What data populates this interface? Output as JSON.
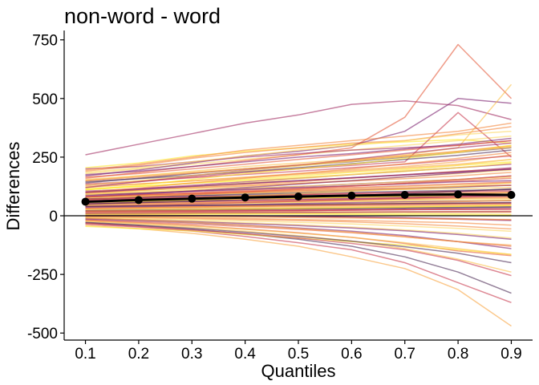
{
  "chart_data": {
    "type": "line",
    "title": "non-word - word",
    "xlabel": "Quantiles",
    "ylabel": "Differences",
    "x": [
      0.1,
      0.2,
      0.3,
      0.4,
      0.5,
      0.6,
      0.7,
      0.8,
      0.9
    ],
    "x_tick_labels": [
      "0.1",
      "0.2",
      "0.3",
      "0.4",
      "0.5",
      "0.6",
      "0.7",
      "0.8",
      "0.9"
    ],
    "y_ticks": [
      750,
      500,
      250,
      0,
      -250,
      -500
    ],
    "y_tick_labels": [
      "750",
      "500",
      "250",
      "0",
      "-250",
      "-500"
    ],
    "xlim": [
      0.06,
      0.94
    ],
    "ylim": [
      -530,
      790
    ],
    "grid": false,
    "zero_line": true,
    "mean_series": {
      "values": [
        60,
        67,
        73,
        78,
        82,
        86,
        89,
        91,
        89
      ],
      "color": "#000000",
      "markers": true
    },
    "individual_series_count": 100,
    "individual_series_colors": [
      "#fde725",
      "#fcd55e",
      "#fbbf4a",
      "#f9a43f",
      "#f3853b",
      "#e45a3a",
      "#c83b4f",
      "#a22d62",
      "#7b1f6e",
      "#4d2b55"
    ],
    "individual_series": [
      {
        "values": [
          205,
          225,
          255,
          275,
          290,
          305,
          315,
          325,
          310
        ]
      },
      {
        "values": [
          260,
          305,
          350,
          395,
          430,
          475,
          490,
          470,
          410
        ]
      },
      {
        "values": [
          190,
          215,
          245,
          270,
          290,
          310,
          320,
          350,
          380
        ]
      },
      {
        "values": [
          180,
          200,
          220,
          240,
          260,
          280,
          300,
          320,
          340
        ]
      },
      {
        "values": [
          170,
          195,
          225,
          255,
          275,
          300,
          360,
          500,
          480
        ]
      },
      {
        "values": [
          160,
          185,
          210,
          235,
          260,
          290,
          420,
          730,
          500
        ]
      },
      {
        "values": [
          150,
          170,
          190,
          210,
          225,
          240,
          260,
          290,
          560
        ]
      },
      {
        "values": [
          140,
          160,
          180,
          200,
          215,
          230,
          250,
          270,
          290
        ]
      },
      {
        "values": [
          130,
          145,
          165,
          185,
          200,
          215,
          230,
          440,
          250
        ]
      },
      {
        "values": [
          120,
          135,
          150,
          165,
          180,
          195,
          210,
          230,
          260
        ]
      },
      {
        "values": [
          110,
          125,
          140,
          155,
          170,
          185,
          200,
          215,
          230
        ]
      },
      {
        "values": [
          100,
          115,
          130,
          145,
          160,
          175,
          190,
          205,
          220
        ]
      },
      {
        "values": [
          95,
          108,
          120,
          133,
          145,
          160,
          175,
          190,
          200
        ]
      },
      {
        "values": [
          90,
          100,
          112,
          125,
          138,
          150,
          165,
          180,
          195
        ]
      },
      {
        "values": [
          85,
          95,
          105,
          115,
          125,
          135,
          145,
          155,
          170
        ]
      },
      {
        "values": [
          80,
          90,
          98,
          108,
          118,
          128,
          138,
          148,
          160
        ]
      },
      {
        "values": [
          75,
          84,
          92,
          100,
          108,
          116,
          124,
          132,
          140
        ]
      },
      {
        "values": [
          70,
          78,
          86,
          94,
          100,
          108,
          115,
          122,
          130
        ]
      },
      {
        "values": [
          65,
          72,
          78,
          85,
          90,
          95,
          100,
          105,
          110
        ]
      },
      {
        "values": [
          60,
          66,
          72,
          78,
          82,
          86,
          90,
          94,
          98
        ]
      },
      {
        "values": [
          55,
          60,
          66,
          70,
          74,
          78,
          82,
          86,
          90
        ]
      },
      {
        "values": [
          50,
          55,
          60,
          64,
          68,
          72,
          76,
          80,
          84
        ]
      },
      {
        "values": [
          45,
          50,
          54,
          58,
          62,
          66,
          70,
          74,
          76
        ]
      },
      {
        "values": [
          40,
          44,
          48,
          52,
          56,
          60,
          62,
          64,
          66
        ]
      },
      {
        "values": [
          35,
          38,
          42,
          45,
          48,
          50,
          52,
          54,
          55
        ]
      },
      {
        "values": [
          30,
          33,
          36,
          39,
          42,
          44,
          46,
          48,
          50
        ]
      },
      {
        "values": [
          25,
          28,
          30,
          32,
          34,
          36,
          38,
          40,
          42
        ]
      },
      {
        "values": [
          20,
          22,
          24,
          26,
          28,
          30,
          32,
          34,
          36
        ]
      },
      {
        "values": [
          15,
          17,
          18,
          20,
          22,
          24,
          26,
          28,
          30
        ]
      },
      {
        "values": [
          10,
          12,
          13,
          14,
          15,
          16,
          17,
          18,
          20
        ]
      },
      {
        "values": [
          5,
          6,
          7,
          8,
          9,
          10,
          10,
          8,
          5
        ]
      },
      {
        "values": [
          0,
          0,
          0,
          -2,
          -4,
          -6,
          -10,
          -15,
          -20
        ]
      },
      {
        "values": [
          -5,
          -8,
          -12,
          -16,
          -20,
          -26,
          -34,
          -44,
          -56
        ]
      },
      {
        "values": [
          -10,
          -15,
          -22,
          -30,
          -38,
          -48,
          -60,
          -75,
          -95
        ]
      },
      {
        "values": [
          -15,
          -22,
          -30,
          -40,
          -52,
          -66,
          -84,
          -110,
          -140
        ]
      },
      {
        "values": [
          -20,
          -30,
          -42,
          -56,
          -72,
          -92,
          -118,
          -150,
          -170
        ]
      },
      {
        "values": [
          -25,
          -36,
          -50,
          -66,
          -85,
          -108,
          -140,
          -185,
          -240
        ]
      },
      {
        "values": [
          -30,
          -42,
          -58,
          -78,
          -100,
          -130,
          -175,
          -240,
          -330
        ]
      },
      {
        "values": [
          -35,
          -48,
          -65,
          -88,
          -115,
          -145,
          -200,
          -285,
          -370
        ]
      },
      {
        "values": [
          -40,
          -55,
          -75,
          -100,
          -130,
          -175,
          -225,
          -315,
          -470
        ]
      },
      {
        "values": [
          -45,
          -55,
          -65,
          -80,
          -95,
          -110,
          -125,
          -145,
          -165
        ]
      },
      {
        "values": [
          200,
          210,
          230,
          250,
          265,
          280,
          290,
          300,
          320
        ]
      },
      {
        "values": [
          195,
          220,
          250,
          280,
          300,
          320,
          340,
          360,
          395
        ]
      },
      {
        "values": [
          185,
          205,
          230,
          255,
          280,
          300,
          320,
          345,
          360
        ]
      },
      {
        "values": [
          175,
          190,
          210,
          230,
          250,
          265,
          285,
          305,
          330
        ]
      },
      {
        "values": [
          165,
          180,
          200,
          220,
          240,
          260,
          280,
          300,
          320
        ]
      },
      {
        "values": [
          155,
          170,
          185,
          200,
          215,
          235,
          255,
          275,
          300
        ]
      },
      {
        "values": [
          145,
          158,
          172,
          188,
          205,
          222,
          240,
          258,
          280
        ]
      },
      {
        "values": [
          135,
          148,
          162,
          176,
          190,
          205,
          220,
          238,
          255
        ]
      },
      {
        "values": [
          125,
          136,
          148,
          162,
          176,
          190,
          205,
          220,
          240
        ]
      },
      {
        "values": [
          115,
          126,
          138,
          150,
          163,
          176,
          190,
          205,
          225
        ]
      },
      {
        "values": [
          105,
          115,
          126,
          138,
          150,
          162,
          175,
          188,
          205
        ]
      },
      {
        "values": [
          98,
          108,
          118,
          128,
          138,
          148,
          158,
          170,
          185
        ]
      },
      {
        "values": [
          92,
          100,
          108,
          117,
          126,
          135,
          145,
          155,
          165
        ]
      },
      {
        "values": [
          88,
          96,
          104,
          112,
          120,
          128,
          136,
          145,
          150
        ]
      },
      {
        "values": [
          82,
          88,
          94,
          100,
          106,
          112,
          118,
          125,
          130
        ]
      },
      {
        "values": [
          78,
          84,
          90,
          96,
          102,
          108,
          112,
          116,
          120
        ]
      },
      {
        "values": [
          72,
          78,
          84,
          90,
          95,
          100,
          104,
          108,
          112
        ]
      },
      {
        "values": [
          68,
          74,
          80,
          85,
          90,
          94,
          98,
          102,
          104
        ]
      },
      {
        "values": [
          62,
          68,
          74,
          79,
          84,
          88,
          92,
          96,
          100
        ]
      },
      {
        "values": [
          58,
          63,
          68,
          72,
          76,
          80,
          84,
          88,
          92
        ]
      },
      {
        "values": [
          52,
          57,
          62,
          66,
          70,
          74,
          78,
          82,
          86
        ]
      },
      {
        "values": [
          48,
          52,
          56,
          60,
          64,
          68,
          72,
          76,
          80
        ]
      },
      {
        "values": [
          42,
          46,
          50,
          54,
          58,
          62,
          66,
          70,
          72
        ]
      },
      {
        "values": [
          38,
          42,
          45,
          48,
          52,
          56,
          60,
          62,
          64
        ]
      },
      {
        "values": [
          32,
          35,
          38,
          41,
          44,
          47,
          50,
          52,
          54
        ]
      },
      {
        "values": [
          28,
          30,
          33,
          36,
          38,
          40,
          42,
          44,
          46
        ]
      },
      {
        "values": [
          22,
          24,
          26,
          28,
          30,
          32,
          34,
          36,
          38
        ]
      },
      {
        "values": [
          18,
          19,
          20,
          21,
          22,
          24,
          26,
          28,
          28
        ]
      },
      {
        "values": [
          12,
          13,
          14,
          15,
          16,
          16,
          16,
          15,
          14
        ]
      },
      {
        "values": [
          8,
          8,
          8,
          8,
          8,
          6,
          4,
          2,
          0
        ]
      },
      {
        "values": [
          2,
          2,
          1,
          0,
          -2,
          -5,
          -8,
          -12,
          -18
        ]
      },
      {
        "values": [
          -3,
          -5,
          -8,
          -12,
          -16,
          -20,
          -25,
          -30,
          -40
        ]
      },
      {
        "values": [
          -8,
          -12,
          -16,
          -22,
          -28,
          -35,
          -44,
          -54,
          -66
        ]
      },
      {
        "values": [
          -12,
          -18,
          -25,
          -33,
          -42,
          -52,
          -64,
          -80,
          -100
        ]
      },
      {
        "values": [
          -18,
          -26,
          -36,
          -46,
          -58,
          -72,
          -90,
          -110,
          -130
        ]
      },
      {
        "values": [
          -22,
          -32,
          -44,
          -58,
          -74,
          -92,
          -115,
          -140,
          -165
        ]
      },
      {
        "values": [
          -28,
          -40,
          -54,
          -70,
          -88,
          -108,
          -132,
          -160,
          -200
        ]
      },
      {
        "values": [
          -32,
          -45,
          -60,
          -76,
          -95,
          -118,
          -145,
          -190,
          -255
        ]
      },
      {
        "values": [
          -10,
          -18,
          -28,
          -40,
          -55,
          -70,
          -90,
          -110,
          -125
        ]
      },
      {
        "values": [
          110,
          130,
          155,
          180,
          200,
          220,
          245,
          270,
          300
        ]
      },
      {
        "values": [
          120,
          145,
          170,
          195,
          215,
          240,
          265,
          290,
          310
        ]
      },
      {
        "values": [
          100,
          118,
          140,
          160,
          180,
          200,
          222,
          245,
          270
        ]
      },
      {
        "values": [
          90,
          105,
          122,
          140,
          158,
          176,
          195,
          215,
          240
        ]
      },
      {
        "values": [
          80,
          92,
          106,
          120,
          135,
          150,
          166,
          182,
          200
        ]
      },
      {
        "values": [
          70,
          80,
          90,
          102,
          114,
          126,
          140,
          154,
          170
        ]
      },
      {
        "values": [
          60,
          68,
          76,
          85,
          94,
          104,
          115,
          126,
          140
        ]
      },
      {
        "values": [
          50,
          56,
          62,
          70,
          78,
          86,
          95,
          104,
          115
        ]
      },
      {
        "values": [
          40,
          45,
          50,
          56,
          62,
          68,
          75,
          82,
          90
        ]
      },
      {
        "values": [
          30,
          34,
          38,
          42,
          46,
          50,
          55,
          60,
          65
        ]
      },
      {
        "values": [
          20,
          22,
          25,
          28,
          31,
          34,
          37,
          40,
          44
        ]
      },
      {
        "values": [
          10,
          11,
          12,
          13,
          14,
          15,
          16,
          17,
          18
        ]
      },
      {
        "values": [
          150,
          165,
          182,
          200,
          218,
          236,
          255,
          275,
          295
        ]
      },
      {
        "values": [
          130,
          150,
          172,
          192,
          212,
          232,
          252,
          272,
          292
        ]
      },
      {
        "values": [
          100,
          112,
          125,
          138,
          150,
          162,
          174,
          186,
          198
        ]
      },
      {
        "values": [
          80,
          88,
          96,
          104,
          112,
          120,
          128,
          136,
          144
        ]
      },
      {
        "values": [
          60,
          64,
          68,
          72,
          76,
          80,
          84,
          88,
          92
        ]
      },
      {
        "values": [
          40,
          42,
          44,
          46,
          48,
          50,
          52,
          54,
          56
        ]
      },
      {
        "values": [
          20,
          21,
          22,
          23,
          24,
          25,
          26,
          27,
          28
        ]
      },
      {
        "values": [
          0,
          -2,
          -4,
          -6,
          -8,
          -10,
          -12,
          -14,
          -16
        ]
      }
    ]
  }
}
